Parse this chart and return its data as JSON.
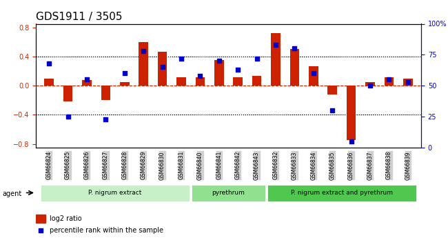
{
  "title": "GDS1911 / 3505",
  "samples": [
    "GSM66824",
    "GSM66825",
    "GSM66826",
    "GSM66827",
    "GSM66828",
    "GSM66829",
    "GSM66830",
    "GSM66831",
    "GSM66840",
    "GSM66841",
    "GSM66842",
    "GSM66843",
    "GSM66832",
    "GSM66833",
    "GSM66834",
    "GSM66835",
    "GSM66836",
    "GSM66837",
    "GSM66838",
    "GSM66839"
  ],
  "log2_ratio": [
    0.1,
    -0.22,
    0.08,
    -0.2,
    0.05,
    0.6,
    0.47,
    0.12,
    0.12,
    0.35,
    0.12,
    0.13,
    0.72,
    0.5,
    0.27,
    -0.12,
    -0.75,
    0.05,
    0.12,
    0.1
  ],
  "percentile": [
    68,
    25,
    55,
    23,
    60,
    78,
    65,
    72,
    58,
    70,
    63,
    72,
    83,
    80,
    60,
    30,
    5,
    50,
    55,
    53
  ],
  "groups": [
    {
      "label": "P. nigrum extract",
      "start": 0,
      "end": 7,
      "color": "#c8f0c8"
    },
    {
      "label": "pyrethrum",
      "start": 8,
      "end": 11,
      "color": "#90e090"
    },
    {
      "label": "P. nigrum extract and pyrethrum",
      "start": 12,
      "end": 19,
      "color": "#50c850"
    }
  ],
  "bar_color": "#cc2200",
  "dot_color": "#0000cc",
  "left_yticks": [
    -0.8,
    -0.4,
    0.0,
    0.4,
    0.8
  ],
  "right_yticks": [
    0,
    25,
    50,
    75,
    100
  ],
  "ylim_left": [
    -0.85,
    0.85
  ],
  "ylim_right": [
    0,
    100
  ],
  "agent_label": "agent",
  "legend_bar_label": "log2 ratio",
  "legend_dot_label": "percentile rank within the sample"
}
